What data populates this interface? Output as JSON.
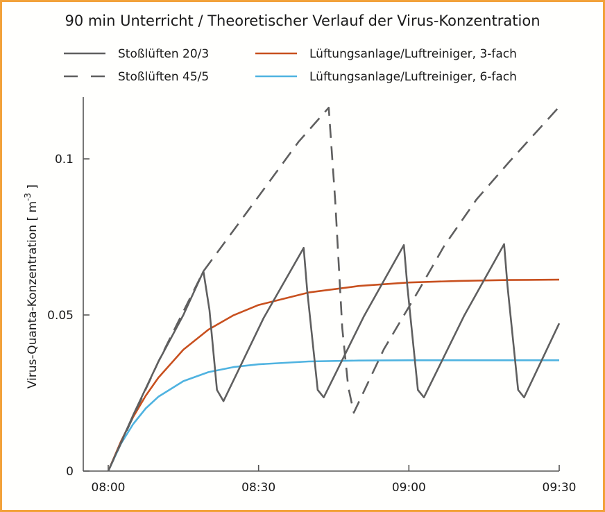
{
  "chart_data": {
    "type": "line",
    "title": "90 min Unterricht / Theoretischer Verlauf der Virus-Konzentration",
    "xlabel": "",
    "ylabel": {
      "main": "Virus-Quanta-Konzentration  [ m",
      "sup": "-3",
      "end": " ]"
    },
    "x_unit": "minutes after 08:00",
    "xlim": [
      0,
      90
    ],
    "ylim": [
      0,
      0.12
    ],
    "grid": false,
    "legend_position": "top",
    "x_ticks": [
      {
        "value": 0,
        "label": "08:00"
      },
      {
        "value": 30,
        "label": "08:30"
      },
      {
        "value": 60,
        "label": "09:00"
      },
      {
        "value": 90,
        "label": "09:30"
      }
    ],
    "y_ticks": [
      {
        "value": 0,
        "label": "0"
      },
      {
        "value": 0.05,
        "label": "0.05"
      },
      {
        "value": 0.1,
        "label": "0.1"
      }
    ],
    "series": [
      {
        "name": "Stoßlüften 20/3",
        "color": "#5f5f5f",
        "dash": false,
        "x": [
          0,
          5,
          10,
          15,
          19,
          20.2,
          21.7,
          23,
          31,
          39,
          39.7,
          41.8,
          43,
          51,
          59,
          59.7,
          61.8,
          63,
          71,
          79,
          79.7,
          81.8,
          83,
          90
        ],
        "y": [
          0,
          0.018,
          0.035,
          0.05,
          0.064,
          0.0516,
          0.026,
          0.0224,
          0.049,
          0.0715,
          0.058,
          0.026,
          0.0236,
          0.0495,
          0.0724,
          0.059,
          0.026,
          0.0236,
          0.0497,
          0.0727,
          0.059,
          0.026,
          0.0236,
          0.0473
        ]
      },
      {
        "name": "Stoßlüften 45/5",
        "color": "#5f5f5f",
        "dash": true,
        "x": [
          0,
          10,
          19,
          30,
          38,
          44,
          45.3,
          46.7,
          47.9,
          49,
          55,
          62,
          67,
          73.5,
          80,
          90
        ],
        "y": [
          0,
          0.035,
          0.064,
          0.088,
          0.1055,
          0.1164,
          0.0864,
          0.0458,
          0.027,
          0.0187,
          0.039,
          0.058,
          0.072,
          0.087,
          0.099,
          0.1167
        ]
      },
      {
        "name": "Lüftungsanlage/Luftreiniger, 3-fach",
        "color": "#c8501e",
        "dash": false,
        "x": [
          0,
          2.5,
          5,
          7.5,
          10,
          15,
          20,
          25,
          30,
          40,
          50,
          60,
          70,
          80,
          90
        ],
        "y": [
          0,
          0.0094,
          0.0174,
          0.0242,
          0.0299,
          0.0389,
          0.0453,
          0.0499,
          0.0532,
          0.0572,
          0.0593,
          0.0604,
          0.0609,
          0.0612,
          0.0613
        ]
      },
      {
        "name": "Lüftungsanlage/Luftreiniger, 6-fach",
        "color": "#4fb3e0",
        "dash": false,
        "x": [
          0,
          2.5,
          5,
          7.5,
          10,
          15,
          20,
          25,
          30,
          40,
          50,
          60,
          70,
          80,
          90
        ],
        "y": [
          0,
          0.0087,
          0.0151,
          0.0201,
          0.0238,
          0.0288,
          0.0317,
          0.0333,
          0.0342,
          0.0351,
          0.0354,
          0.0355,
          0.0355,
          0.0355,
          0.0355
        ]
      }
    ]
  }
}
